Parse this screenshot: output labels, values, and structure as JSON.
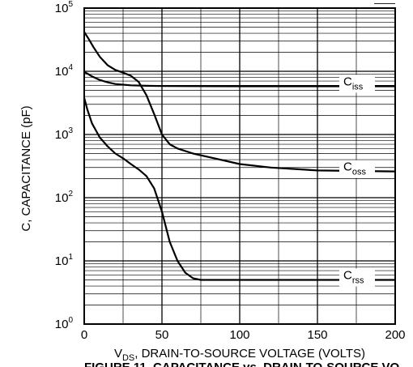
{
  "chart_data": {
    "type": "line",
    "y_scale": "log",
    "x_range": [
      0,
      200
    ],
    "y_range": [
      1,
      100000
    ],
    "grid": true,
    "xlabel": {
      "prefix": "V",
      "subscript": "DS",
      "text": ", DRAIN-TO-SOURCE VOLTAGE (VOLTS)"
    },
    "ylabel": "C, CAPACITANCE (pF)",
    "caption": "FIGURE 11. CAPACITANCE vs. DRAIN-TO-SOURCE VO",
    "top_right_fragment": "——",
    "x_ticks": [
      "0",
      "50",
      "100",
      "150",
      "200"
    ],
    "y_ticks": [
      {
        "base": "10",
        "exp": "0"
      },
      {
        "base": "10",
        "exp": "1"
      },
      {
        "base": "10",
        "exp": "2"
      },
      {
        "base": "10",
        "exp": "3"
      },
      {
        "base": "10",
        "exp": "4"
      },
      {
        "base": "10",
        "exp": "5"
      }
    ],
    "series": [
      {
        "name": "C_iss",
        "label": {
          "main": "C",
          "sub": "iss"
        },
        "label_at": [
          175,
          5800
        ],
        "points": [
          [
            0,
            9800
          ],
          [
            2,
            9200
          ],
          [
            5,
            8300
          ],
          [
            10,
            7300
          ],
          [
            15,
            6700
          ],
          [
            20,
            6300
          ],
          [
            30,
            6000
          ],
          [
            40,
            5900
          ],
          [
            50,
            5850
          ],
          [
            100,
            5800
          ],
          [
            150,
            5800
          ],
          [
            200,
            5800
          ]
        ]
      },
      {
        "name": "C_oss",
        "label": {
          "main": "C",
          "sub": "oss"
        },
        "label_at": [
          175,
          260
        ],
        "points": [
          [
            0,
            42000
          ],
          [
            3,
            32000
          ],
          [
            6,
            24000
          ],
          [
            10,
            17000
          ],
          [
            15,
            12500
          ],
          [
            20,
            10500
          ],
          [
            25,
            9500
          ],
          [
            30,
            8500
          ],
          [
            35,
            6800
          ],
          [
            40,
            4200
          ],
          [
            45,
            2100
          ],
          [
            50,
            1000
          ],
          [
            55,
            700
          ],
          [
            60,
            600
          ],
          [
            70,
            500
          ],
          [
            80,
            440
          ],
          [
            100,
            340
          ],
          [
            120,
            300
          ],
          [
            150,
            270
          ],
          [
            200,
            260
          ]
        ]
      },
      {
        "name": "C_rss",
        "label": {
          "main": "C",
          "sub": "rss"
        },
        "label_at": [
          175,
          5
        ],
        "points": [
          [
            0,
            3800
          ],
          [
            2,
            2500
          ],
          [
            5,
            1500
          ],
          [
            10,
            900
          ],
          [
            15,
            650
          ],
          [
            20,
            500
          ],
          [
            25,
            420
          ],
          [
            30,
            340
          ],
          [
            35,
            280
          ],
          [
            40,
            220
          ],
          [
            45,
            140
          ],
          [
            50,
            60
          ],
          [
            55,
            20
          ],
          [
            60,
            10
          ],
          [
            65,
            6.5
          ],
          [
            70,
            5.3
          ],
          [
            75,
            5
          ],
          [
            100,
            5
          ],
          [
            150,
            5
          ],
          [
            200,
            5
          ]
        ]
      }
    ]
  }
}
